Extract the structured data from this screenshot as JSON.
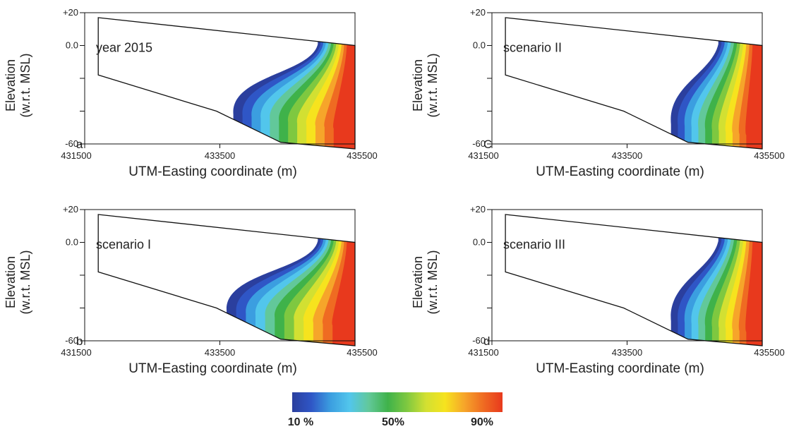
{
  "chart_data": [
    {
      "type": "contour",
      "panel_letter": "a",
      "annotation": "year 2015",
      "xlabel": "UTM-Easting coordinate (m)",
      "ylabel_line1": "Elevation",
      "ylabel_line2": "(w.r.t. MSL)",
      "x_ticks": [
        "431500",
        "433500",
        "435500"
      ],
      "y_ticks": [
        "+20",
        "0.0",
        "-60"
      ],
      "xlim": [
        431500,
        435500
      ],
      "ylim": [
        -60,
        20
      ],
      "domain_top": [
        [
          431700,
          17
        ],
        [
          435500,
          0
        ]
      ],
      "domain_bottom": [
        [
          431700,
          -18
        ],
        [
          433450,
          -40
        ],
        [
          434400,
          -59
        ],
        [
          435500,
          -63
        ]
      ],
      "plume_toe": [
        433700,
        -42
      ],
      "plume_top_x": 434950
    },
    {
      "type": "contour",
      "panel_letter": "C",
      "annotation": "scenario II",
      "xlabel": "UTM-Easting coordinate (m)",
      "ylabel_line1": "Elevation",
      "ylabel_line2": "(w.r.t. MSL)",
      "x_ticks": [
        "431500",
        "433500",
        "435500"
      ],
      "y_ticks": [
        "+20",
        "0.0",
        "-60"
      ],
      "xlim": [
        431500,
        435500
      ],
      "ylim": [
        -60,
        20
      ],
      "domain_top": [
        [
          431700,
          17
        ],
        [
          435500,
          0
        ]
      ],
      "domain_bottom": [
        [
          431700,
          -18
        ],
        [
          433450,
          -40
        ],
        [
          434400,
          -59
        ],
        [
          435500,
          -63
        ]
      ],
      "plume_toe": [
        434150,
        -48
      ],
      "plume_top_x": 434850
    },
    {
      "type": "contour",
      "panel_letter": "b",
      "annotation": "scenario I",
      "xlabel": "UTM-Easting coordinate (m)",
      "ylabel_line1": "Elevation",
      "ylabel_line2": "(w.r.t. MSL)",
      "x_ticks": [
        "431500",
        "433500",
        "435500"
      ],
      "y_ticks": [
        "+20",
        "0.0",
        "-60"
      ],
      "xlim": [
        431500,
        435500
      ],
      "ylim": [
        -60,
        20
      ],
      "domain_top": [
        [
          431700,
          17
        ],
        [
          435500,
          0
        ]
      ],
      "domain_bottom": [
        [
          431700,
          -18
        ],
        [
          433450,
          -40
        ],
        [
          434400,
          -59
        ],
        [
          435500,
          -63
        ]
      ],
      "plume_toe": [
        433600,
        -42
      ],
      "plume_top_x": 434950
    },
    {
      "type": "contour",
      "panel_letter": "d",
      "annotation": "scenario III",
      "xlabel": "UTM-Easting coordinate (m)",
      "ylabel_line1": "Elevation",
      "ylabel_line2": "(w.r.t. MSL)",
      "x_ticks": [
        "431500",
        "433500",
        "435500"
      ],
      "y_ticks": [
        "+20",
        "0.0",
        "-60"
      ],
      "xlim": [
        431500,
        435500
      ],
      "ylim": [
        -60,
        20
      ],
      "domain_top": [
        [
          431700,
          17
        ],
        [
          435500,
          0
        ]
      ],
      "domain_bottom": [
        [
          431700,
          -18
        ],
        [
          433450,
          -40
        ],
        [
          434400,
          -59
        ],
        [
          435500,
          -63
        ]
      ],
      "plume_toe": [
        434150,
        -48
      ],
      "plume_top_x": 434850
    }
  ],
  "colorbar": {
    "labels": [
      "10 %",
      "50%",
      "90%"
    ],
    "colors": [
      "#2b3f9e",
      "#2f56c6",
      "#3b9ee0",
      "#52c6ec",
      "#62c89a",
      "#3fb24a",
      "#7ec840",
      "#d2e032",
      "#f6e31e",
      "#f6a52a",
      "#ef6b22",
      "#e8391d"
    ]
  }
}
